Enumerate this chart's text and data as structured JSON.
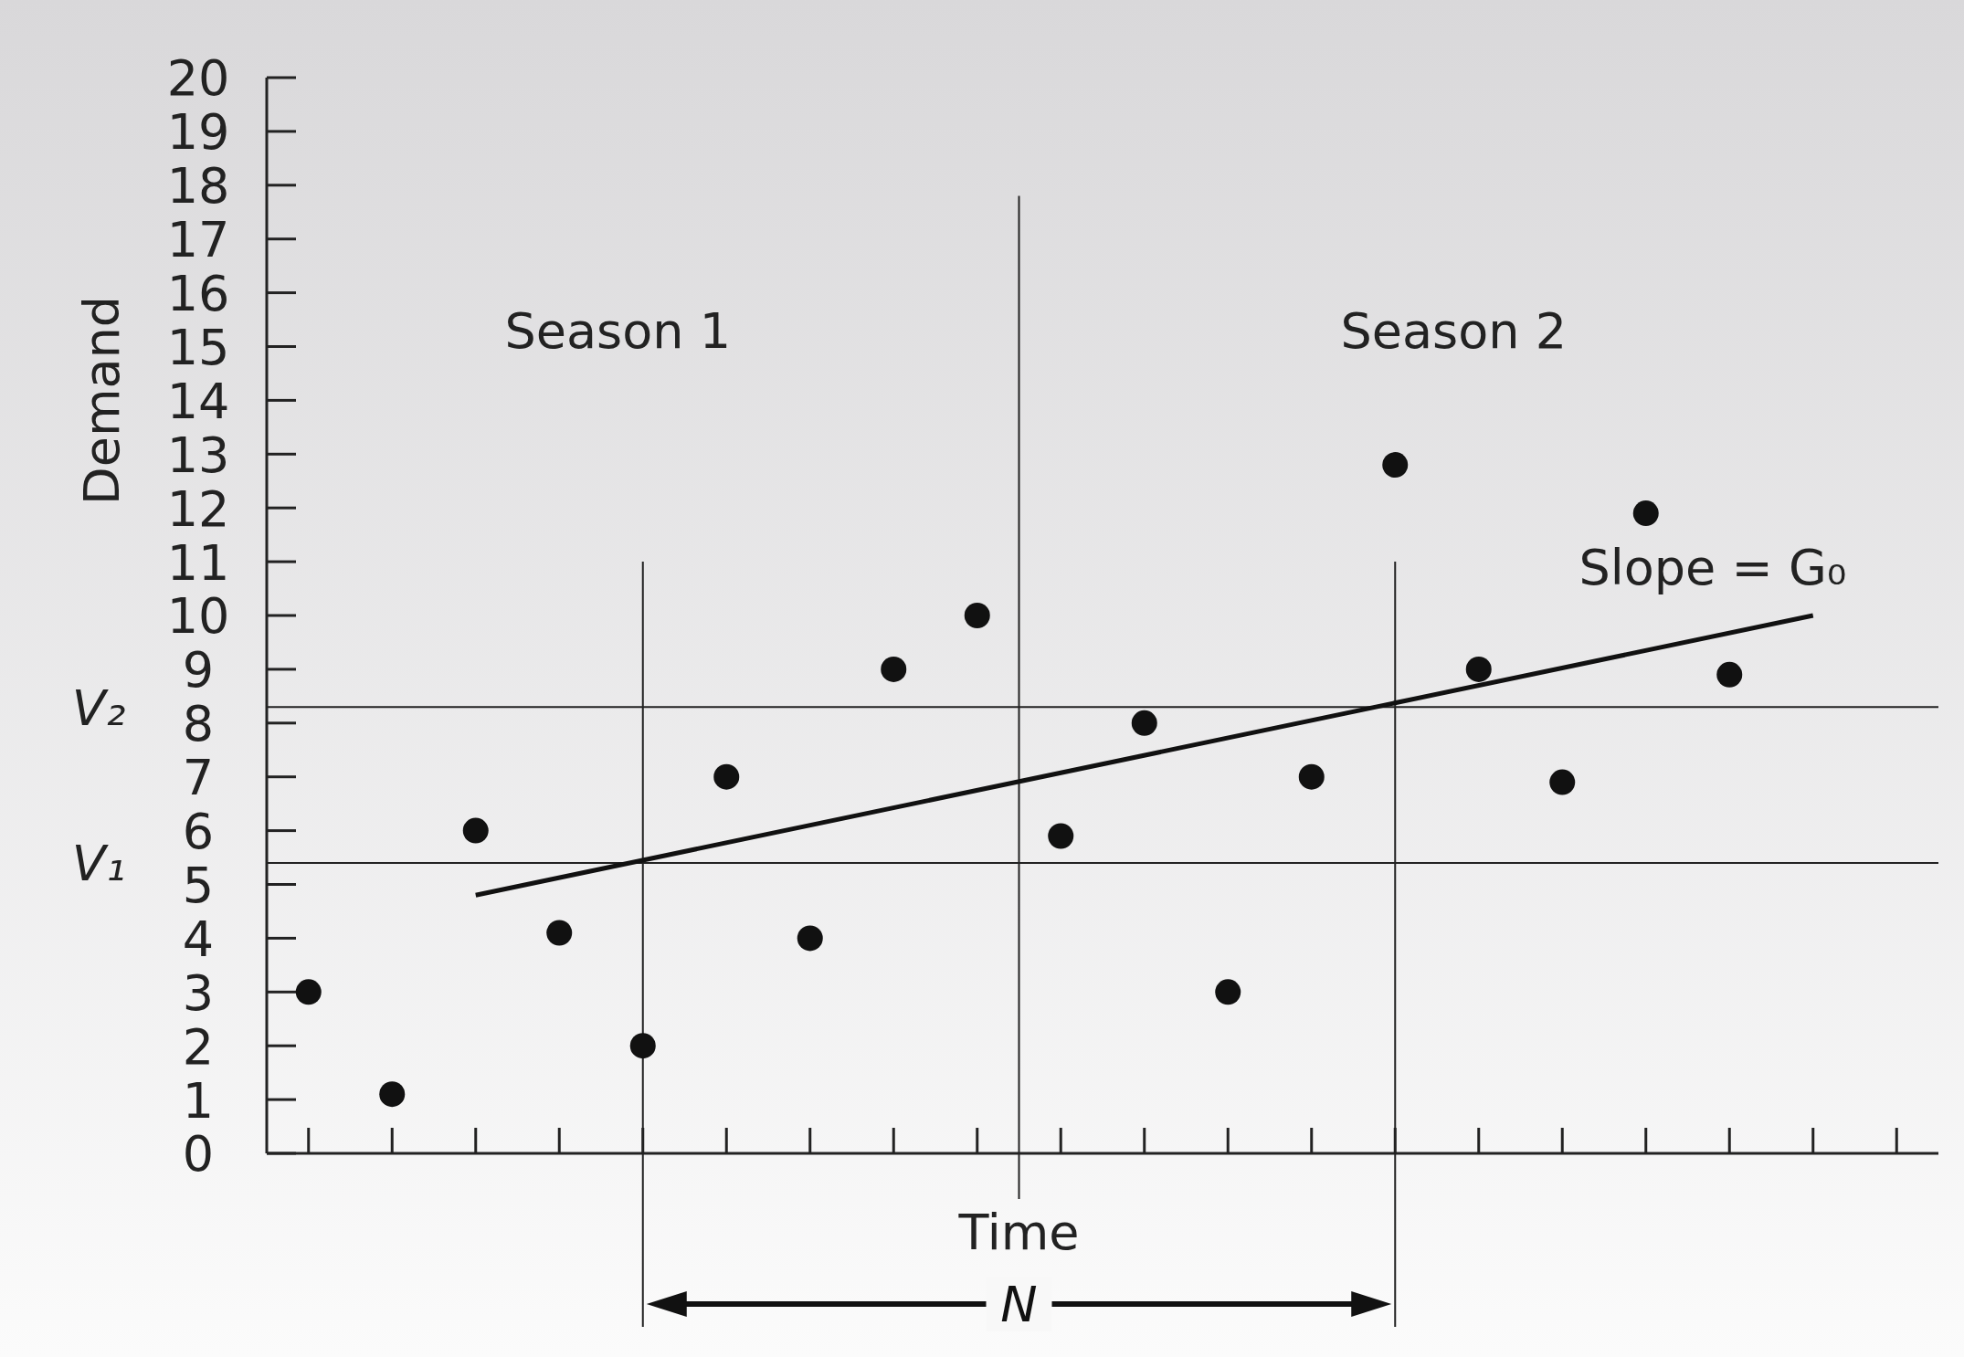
{
  "chart_data": {
    "type": "scatter",
    "xlabel": "Time",
    "ylabel": "Demand",
    "categories": [
      null,
      null,
      null,
      null,
      null,
      null,
      null,
      null,
      null,
      null,
      null,
      null,
      null,
      null,
      null,
      null,
      null,
      null,
      null,
      null
    ],
    "ylim": [
      0,
      20
    ],
    "yticks": [
      0,
      1,
      2,
      3,
      4,
      5,
      6,
      7,
      8,
      9,
      10,
      11,
      12,
      13,
      14,
      15,
      16,
      17,
      18,
      19,
      20
    ],
    "tick_labels": "y",
    "marker": "circle",
    "series": [
      {
        "color": "#111111",
        "values": [
          3,
          1.1,
          6,
          4.1,
          2,
          7,
          4,
          9,
          10,
          5.9,
          8,
          3,
          7,
          12.8,
          9,
          6.9,
          11.9,
          8.9,
          null,
          null
        ]
      },
      {
        "type": "line",
        "color": "#111111",
        "values": [
          null,
          null,
          4.8,
          null,
          null,
          null,
          null,
          null,
          null,
          null,
          null,
          null,
          null,
          null,
          null,
          null,
          null,
          null,
          10,
          null
        ],
        "marker": "none",
        "line_style": "solid"
      }
    ],
    "ref_lines": [
      {
        "axis": "y",
        "value": 5.4,
        "label": "V₁"
      },
      {
        "axis": "y",
        "value": 8.3,
        "label": "V₂"
      }
    ],
    "annotations": [
      "Season 1",
      "Season 2",
      "Slope = G₀",
      "N"
    ]
  }
}
